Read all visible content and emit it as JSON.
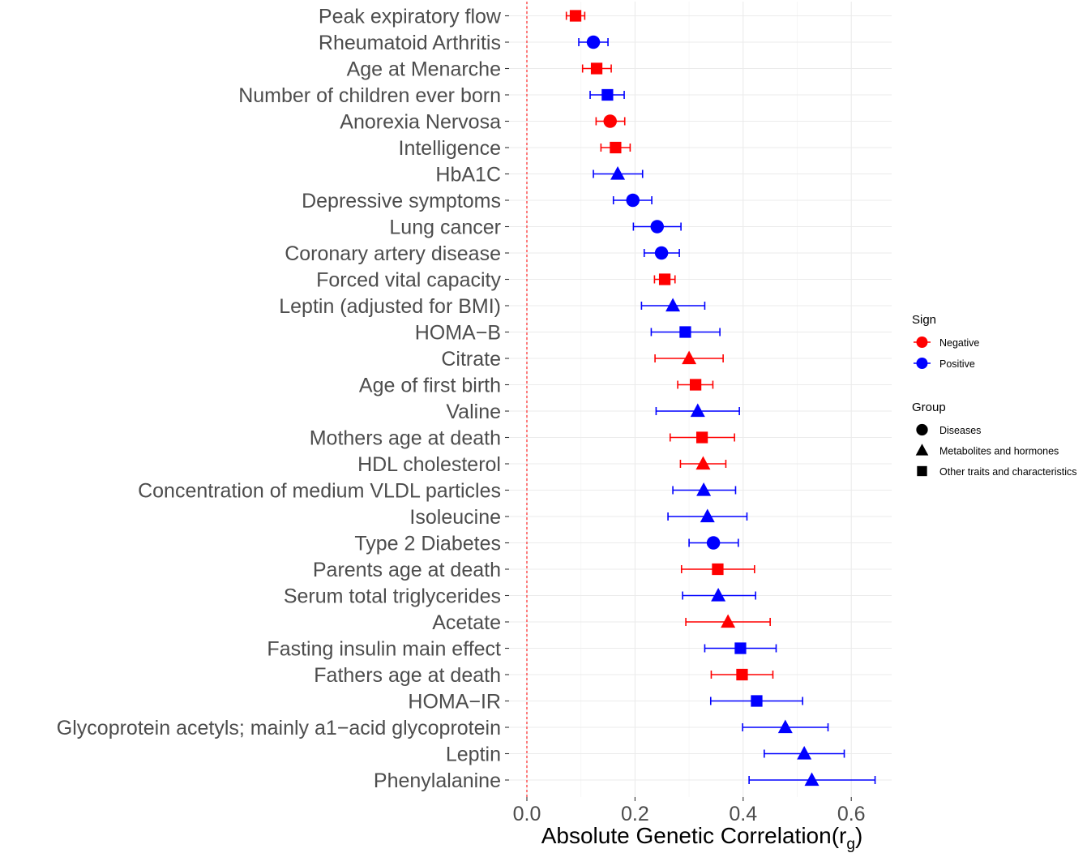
{
  "chart_data": {
    "type": "forest",
    "title": "",
    "xlabel": "Absolute Genetic Correlation",
    "xlabel_subscript_symbol": "r",
    "xlabel_subscript": "g",
    "xlim": [
      -0.02,
      0.68
    ],
    "xticks": [
      0.0,
      0.2,
      0.4,
      0.6
    ],
    "xtick_labels": [
      "0.0",
      "0.2",
      "0.4",
      "0.6"
    ],
    "reference_line": {
      "x": 0.0,
      "style": "dashed",
      "color": "#ff0000"
    },
    "grid": true,
    "colors": {
      "Negative": "#ff0000",
      "Positive": "#0000ff"
    },
    "shapes": {
      "Diseases": "circle",
      "Metabolites and hormones": "triangle",
      "Other traits and characteristics": "square"
    },
    "legend": {
      "placement": "right",
      "sign_title": "Sign",
      "sign_items": [
        {
          "label": "Negative",
          "color": "#ff0000"
        },
        {
          "label": "Positive",
          "color": "#0000ff"
        }
      ],
      "group_title": "Group",
      "group_items": [
        {
          "label": "Diseases",
          "shape": "circle"
        },
        {
          "label": "Metabolites and hormones",
          "shape": "triangle"
        },
        {
          "label": "Other traits and characteristics",
          "shape": "square"
        }
      ]
    },
    "points": [
      {
        "trait": "Peak expiratory flow",
        "rg": 0.09,
        "lower": 0.073,
        "upper": 0.107,
        "sign": "Negative",
        "group": "Other traits and characteristics"
      },
      {
        "trait": "Rheumatoid Arthritis",
        "rg": 0.123,
        "lower": 0.096,
        "upper": 0.15,
        "sign": "Positive",
        "group": "Diseases"
      },
      {
        "trait": "Age at Menarche",
        "rg": 0.129,
        "lower": 0.103,
        "upper": 0.156,
        "sign": "Negative",
        "group": "Other traits and characteristics"
      },
      {
        "trait": "Number of children ever born",
        "rg": 0.149,
        "lower": 0.117,
        "upper": 0.18,
        "sign": "Positive",
        "group": "Other traits and characteristics"
      },
      {
        "trait": "Anorexia Nervosa",
        "rg": 0.154,
        "lower": 0.128,
        "upper": 0.181,
        "sign": "Negative",
        "group": "Diseases"
      },
      {
        "trait": "Intelligence",
        "rg": 0.164,
        "lower": 0.137,
        "upper": 0.191,
        "sign": "Negative",
        "group": "Other traits and characteristics"
      },
      {
        "trait": "HbA1C",
        "rg": 0.168,
        "lower": 0.123,
        "upper": 0.214,
        "sign": "Positive",
        "group": "Metabolites and hormones"
      },
      {
        "trait": "Depressive symptoms",
        "rg": 0.196,
        "lower": 0.16,
        "upper": 0.231,
        "sign": "Positive",
        "group": "Diseases"
      },
      {
        "trait": "Lung cancer",
        "rg": 0.241,
        "lower": 0.197,
        "upper": 0.285,
        "sign": "Positive",
        "group": "Diseases"
      },
      {
        "trait": "Coronary artery disease",
        "rg": 0.249,
        "lower": 0.217,
        "upper": 0.282,
        "sign": "Positive",
        "group": "Diseases"
      },
      {
        "trait": "Forced vital capacity",
        "rg": 0.255,
        "lower": 0.236,
        "upper": 0.274,
        "sign": "Negative",
        "group": "Other traits and characteristics"
      },
      {
        "trait": "Leptin (adjusted for BMI)",
        "rg": 0.27,
        "lower": 0.212,
        "upper": 0.329,
        "sign": "Positive",
        "group": "Metabolites and hormones"
      },
      {
        "trait": "HOMA−B",
        "rg": 0.293,
        "lower": 0.23,
        "upper": 0.357,
        "sign": "Positive",
        "group": "Other traits and characteristics"
      },
      {
        "trait": "Citrate",
        "rg": 0.3,
        "lower": 0.237,
        "upper": 0.363,
        "sign": "Negative",
        "group": "Metabolites and hormones"
      },
      {
        "trait": "Age of first birth",
        "rg": 0.312,
        "lower": 0.279,
        "upper": 0.344,
        "sign": "Negative",
        "group": "Other traits and characteristics"
      },
      {
        "trait": "Valine",
        "rg": 0.316,
        "lower": 0.239,
        "upper": 0.393,
        "sign": "Positive",
        "group": "Metabolites and hormones"
      },
      {
        "trait": "Mothers age at death",
        "rg": 0.324,
        "lower": 0.265,
        "upper": 0.384,
        "sign": "Negative",
        "group": "Other traits and characteristics"
      },
      {
        "trait": "HDL cholesterol",
        "rg": 0.326,
        "lower": 0.284,
        "upper": 0.368,
        "sign": "Negative",
        "group": "Metabolites and hormones"
      },
      {
        "trait": "Concentration of medium VLDL particles",
        "rg": 0.327,
        "lower": 0.27,
        "upper": 0.386,
        "sign": "Positive",
        "group": "Metabolites and hormones"
      },
      {
        "trait": "Isoleucine",
        "rg": 0.334,
        "lower": 0.261,
        "upper": 0.407,
        "sign": "Positive",
        "group": "Metabolites and hormones"
      },
      {
        "trait": "Type 2 Diabetes",
        "rg": 0.345,
        "lower": 0.3,
        "upper": 0.391,
        "sign": "Positive",
        "group": "Diseases"
      },
      {
        "trait": "Parents age at death",
        "rg": 0.353,
        "lower": 0.286,
        "upper": 0.421,
        "sign": "Negative",
        "group": "Other traits and characteristics"
      },
      {
        "trait": "Serum total triglycerides",
        "rg": 0.354,
        "lower": 0.288,
        "upper": 0.423,
        "sign": "Positive",
        "group": "Metabolites and hormones"
      },
      {
        "trait": "Acetate",
        "rg": 0.372,
        "lower": 0.294,
        "upper": 0.45,
        "sign": "Negative",
        "group": "Metabolites and hormones"
      },
      {
        "trait": "Fasting insulin main effect",
        "rg": 0.395,
        "lower": 0.329,
        "upper": 0.461,
        "sign": "Positive",
        "group": "Other traits and characteristics"
      },
      {
        "trait": "Fathers age at death",
        "rg": 0.398,
        "lower": 0.341,
        "upper": 0.455,
        "sign": "Negative",
        "group": "Other traits and characteristics"
      },
      {
        "trait": "HOMA−IR",
        "rg": 0.425,
        "lower": 0.34,
        "upper": 0.51,
        "sign": "Positive",
        "group": "Other traits and characteristics"
      },
      {
        "trait": "Glycoprotein acetyls; mainly a1−acid glycoprotein",
        "rg": 0.478,
        "lower": 0.399,
        "upper": 0.557,
        "sign": "Positive",
        "group": "Metabolites and hormones"
      },
      {
        "trait": "Leptin",
        "rg": 0.513,
        "lower": 0.439,
        "upper": 0.587,
        "sign": "Positive",
        "group": "Metabolites and hormones"
      },
      {
        "trait": "Phenylalanine",
        "rg": 0.527,
        "lower": 0.411,
        "upper": 0.644,
        "sign": "Positive",
        "group": "Metabolites and hormones"
      }
    ]
  }
}
